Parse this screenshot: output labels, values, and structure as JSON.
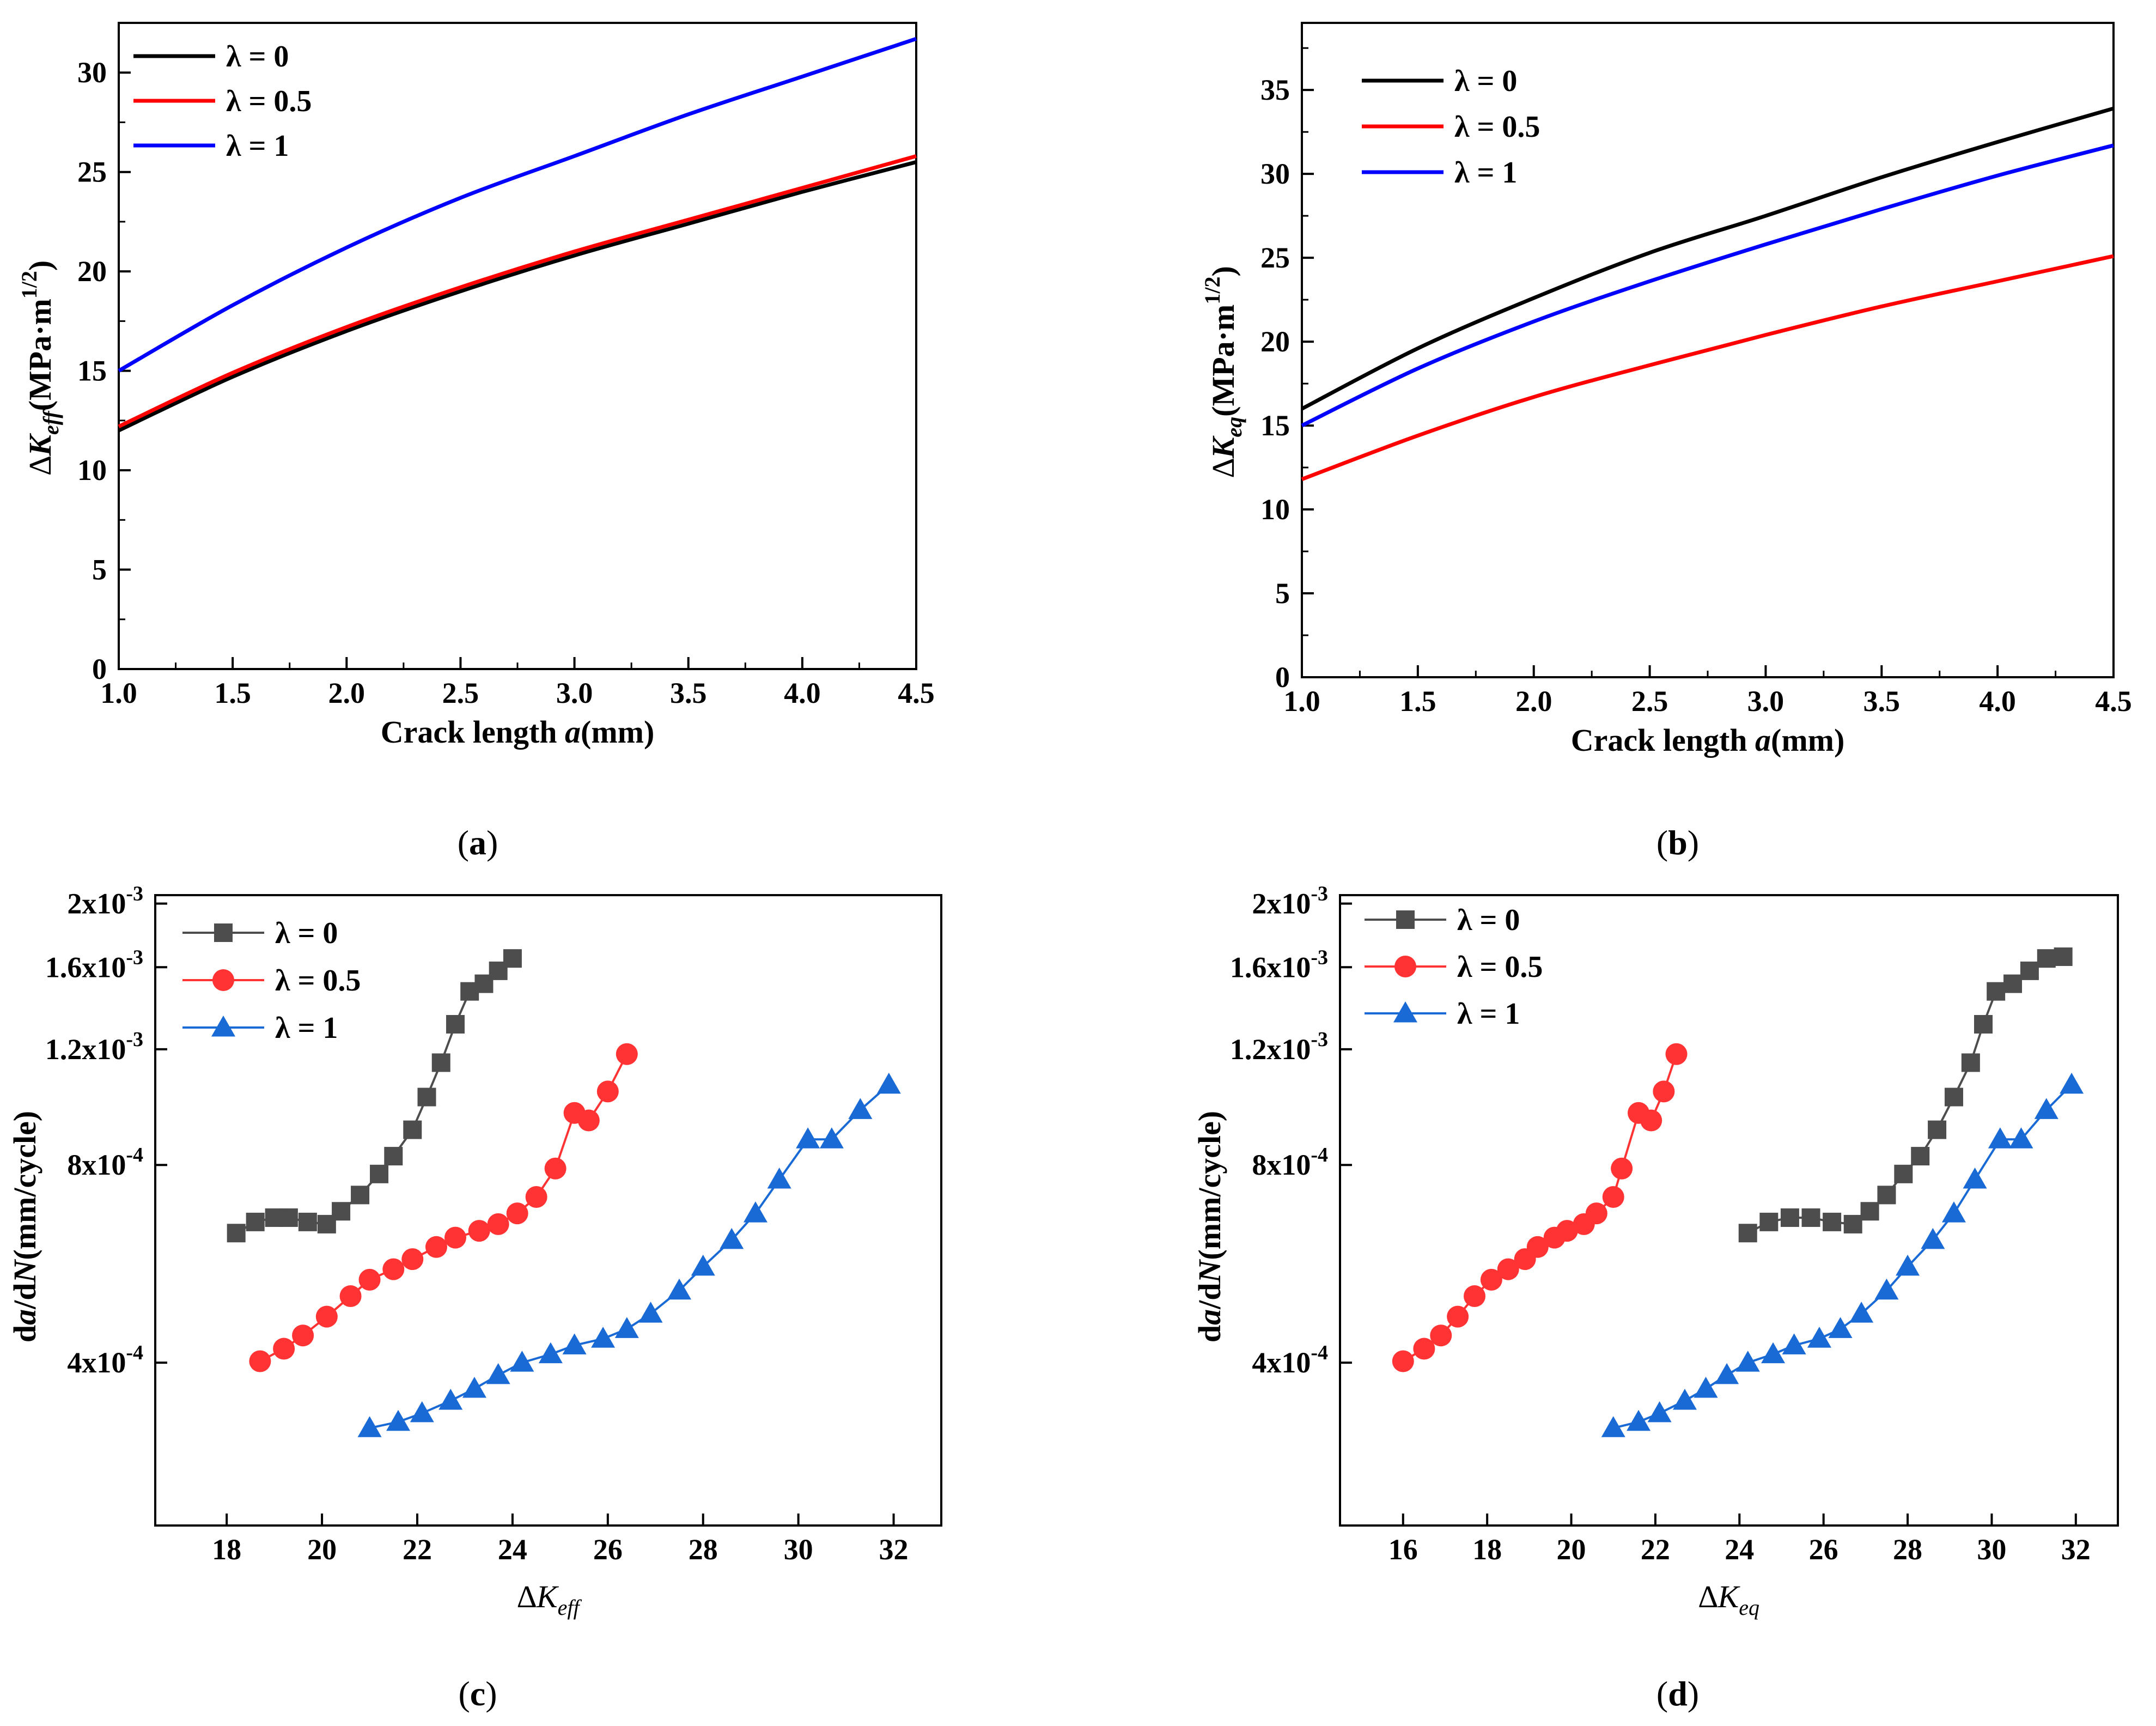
{
  "chart_data": [
    {
      "id": "a",
      "type": "line",
      "caption": "(a)",
      "xlabel": {
        "prefix": "Crack length ",
        "var": "a",
        "unit": "(mm)"
      },
      "ylabel": {
        "delta": "∆",
        "K": "K",
        "sub": "eff",
        "unit": "(MPa·m",
        "sup": "1/2",
        "close": ")"
      },
      "xlim": [
        1.0,
        4.5
      ],
      "ylim": [
        0,
        32.5
      ],
      "xticks": [
        1.0,
        1.5,
        2.0,
        2.5,
        3.0,
        3.5,
        4.0,
        4.5
      ],
      "xtick_labels": [
        "1.0",
        "1.5",
        "2.0",
        "2.5",
        "3.0",
        "3.5",
        "4.0",
        "4.5"
      ],
      "yticks": [
        0,
        5,
        10,
        15,
        20,
        25,
        30
      ],
      "ytick_labels": [
        "0",
        "5",
        "10",
        "15",
        "20",
        "25",
        "30"
      ],
      "legend_position": "top-left",
      "series": [
        {
          "name": "λ = 0",
          "color": "#000000",
          "x": [
            1.0,
            1.5,
            2.0,
            2.5,
            3.0,
            3.5,
            4.0,
            4.5
          ],
          "values": [
            12.0,
            14.7,
            17.0,
            19.0,
            20.8,
            22.4,
            24.0,
            25.5
          ]
        },
        {
          "name": "λ = 0.5",
          "color": "#ff0000",
          "x": [
            1.0,
            1.5,
            2.0,
            2.5,
            3.0,
            3.5,
            4.0,
            4.5
          ],
          "values": [
            12.2,
            14.9,
            17.2,
            19.2,
            21.0,
            22.6,
            24.2,
            25.8
          ]
        },
        {
          "name": "λ = 1",
          "color": "#0000ff",
          "x": [
            1.0,
            1.5,
            2.0,
            2.5,
            3.0,
            3.5,
            4.0,
            4.5
          ],
          "values": [
            15.0,
            18.3,
            21.2,
            23.7,
            25.8,
            27.9,
            29.8,
            31.7
          ]
        }
      ]
    },
    {
      "id": "b",
      "type": "line",
      "caption": "(b)",
      "xlabel": {
        "prefix": "Crack length ",
        "var": "a",
        "unit": "(mm)"
      },
      "ylabel": {
        "delta": "∆",
        "K": "K",
        "sub": "eq",
        "unit": "(MPa·m",
        "sup": "1/2",
        "close": ")"
      },
      "xlim": [
        1.0,
        4.5
      ],
      "ylim": [
        0,
        39
      ],
      "xticks": [
        1.0,
        1.5,
        2.0,
        2.5,
        3.0,
        3.5,
        4.0,
        4.5
      ],
      "xtick_labels": [
        "1.0",
        "1.5",
        "2.0",
        "2.5",
        "3.0",
        "3.5",
        "4.0",
        "4.5"
      ],
      "yticks": [
        0,
        5,
        10,
        15,
        20,
        25,
        30,
        35
      ],
      "ytick_labels": [
        "0",
        "5",
        "10",
        "15",
        "20",
        "25",
        "30",
        "35"
      ],
      "legend_position": "top-left",
      "series": [
        {
          "name": "λ = 0",
          "color": "#000000",
          "x": [
            1.0,
            1.5,
            2.0,
            2.5,
            3.0,
            3.5,
            4.0,
            4.5
          ],
          "values": [
            16.0,
            19.6,
            22.6,
            25.3,
            27.5,
            29.8,
            31.9,
            33.9
          ]
        },
        {
          "name": "λ = 0.5",
          "color": "#ff0000",
          "x": [
            1.0,
            1.5,
            2.0,
            2.5,
            3.0,
            3.5,
            4.0,
            4.5
          ],
          "values": [
            11.8,
            14.4,
            16.7,
            18.6,
            20.4,
            22.1,
            23.6,
            25.1
          ]
        },
        {
          "name": "λ = 1",
          "color": "#0000ff",
          "x": [
            1.0,
            1.5,
            2.0,
            2.5,
            3.0,
            3.5,
            4.0,
            4.5
          ],
          "values": [
            15.0,
            18.4,
            21.2,
            23.6,
            25.8,
            27.9,
            29.9,
            31.7
          ]
        }
      ]
    },
    {
      "id": "c",
      "type": "scatter",
      "caption": "(c)",
      "xlabel": {
        "delta": "∆",
        "K": "K",
        "sub": "eff"
      },
      "ylabel": {
        "pre": "d",
        "a": "a",
        "mid": "/d",
        "N": "N",
        "post": "(mm/cycle)"
      },
      "xlim": [
        16.5,
        33
      ],
      "ylim": [
        0.000226,
        0.00206
      ],
      "xticks": [
        18,
        20,
        22,
        24,
        26,
        28,
        30,
        32
      ],
      "xtick_labels": [
        "18",
        "20",
        "22",
        "24",
        "26",
        "28",
        "30",
        "32"
      ],
      "yticks": [
        0.0004,
        0.0008,
        0.0012,
        0.0016,
        0.002
      ],
      "ytick_labels": [
        {
          "m": "4x10",
          "e": "-4"
        },
        {
          "m": "8x10",
          "e": "-4"
        },
        {
          "m": "1.2x10",
          "e": "-3"
        },
        {
          "m": "1.6x10",
          "e": "-3"
        },
        {
          "m": "2x10",
          "e": "-3"
        }
      ],
      "legend_position": "top-left",
      "series": [
        {
          "name": "λ = 0",
          "color": "#4d4d4d",
          "marker": "square",
          "x": [
            18.2,
            18.6,
            19.0,
            19.3,
            19.7,
            20.1,
            20.4,
            20.8,
            21.2,
            21.5,
            21.9,
            22.2,
            22.5,
            22.8,
            23.1,
            23.4,
            23.7,
            24.0
          ],
          "values": [
            0.00063,
            0.000655,
            0.000665,
            0.000665,
            0.000655,
            0.00065,
            0.00068,
            0.00072,
            0.000775,
            0.000825,
            0.000905,
            0.001015,
            0.001145,
            0.00131,
            0.00147,
            0.00151,
            0.00158,
            0.00165
          ]
        },
        {
          "name": "λ = 0.5",
          "color": "#ff3333",
          "marker": "circle",
          "x": [
            18.7,
            19.2,
            19.6,
            20.1,
            20.6,
            21.0,
            21.5,
            21.9,
            22.4,
            22.8,
            23.3,
            23.7,
            24.1,
            24.5,
            24.9,
            25.3,
            25.6,
            26.0,
            26.4
          ],
          "values": [
            0.000402,
            0.00042,
            0.00044,
            0.00047,
            0.000505,
            0.000535,
            0.000555,
            0.000575,
            0.0006,
            0.00062,
            0.000635,
            0.00065,
            0.000675,
            0.000715,
            0.00079,
            0.00096,
            0.000935,
            0.001035,
            0.00118
          ]
        },
        {
          "name": "λ = 1",
          "color": "#1a6ad6",
          "marker": "triangle",
          "x": [
            21.0,
            21.6,
            22.1,
            22.7,
            23.2,
            23.7,
            24.2,
            24.8,
            25.3,
            25.9,
            26.4,
            26.9,
            27.5,
            28.0,
            28.6,
            29.1,
            29.6,
            30.2,
            30.7,
            31.3,
            31.9
          ],
          "values": [
            0.000318,
            0.000325,
            0.000335,
            0.00035,
            0.000365,
            0.000383,
            0.0004,
            0.000412,
            0.000425,
            0.000435,
            0.00045,
            0.000475,
            0.000515,
            0.00056,
            0.000615,
            0.000675,
            0.00076,
            0.000875,
            0.000875,
            0.00097,
            0.00106
          ]
        }
      ]
    },
    {
      "id": "d",
      "type": "scatter",
      "caption": "(d)",
      "xlabel": {
        "delta": "∆",
        "K": "K",
        "sub": "eq"
      },
      "ylabel": {
        "pre": "d",
        "a": "a",
        "mid": "/d",
        "N": "N",
        "post": "(mm/cycle)"
      },
      "xlim": [
        14.5,
        33
      ],
      "ylim": [
        0.000226,
        0.00206
      ],
      "xticks": [
        16,
        18,
        20,
        22,
        24,
        26,
        28,
        30,
        32
      ],
      "xtick_labels": [
        "16",
        "18",
        "20",
        "22",
        "24",
        "26",
        "28",
        "30",
        "32"
      ],
      "yticks": [
        0.0004,
        0.0008,
        0.0012,
        0.0016,
        0.002
      ],
      "ytick_labels": [
        {
          "m": "4x10",
          "e": "-4"
        },
        {
          "m": "8x10",
          "e": "-4"
        },
        {
          "m": "1.2x10",
          "e": "-3"
        },
        {
          "m": "1.6x10",
          "e": "-3"
        },
        {
          "m": "2x10",
          "e": "-3"
        }
      ],
      "legend_position": "top-left",
      "series": [
        {
          "name": "λ = 0",
          "color": "#4d4d4d",
          "marker": "square",
          "x": [
            24.2,
            24.7,
            25.2,
            25.7,
            26.2,
            26.7,
            27.1,
            27.5,
            27.9,
            28.3,
            28.7,
            29.1,
            29.5,
            29.8,
            30.1,
            30.5,
            30.9,
            31.3,
            31.7
          ],
          "values": [
            0.00063,
            0.000655,
            0.000665,
            0.000665,
            0.000655,
            0.00065,
            0.00068,
            0.00072,
            0.000775,
            0.000825,
            0.000905,
            0.001015,
            0.001145,
            0.00131,
            0.00147,
            0.00151,
            0.00158,
            0.00165,
            0.00166
          ]
        },
        {
          "name": "λ = 0.5",
          "color": "#ff3333",
          "marker": "circle",
          "x": [
            16.0,
            16.5,
            16.9,
            17.3,
            17.7,
            18.1,
            18.5,
            18.9,
            19.2,
            19.6,
            19.9,
            20.3,
            20.6,
            21.0,
            21.2,
            21.6,
            21.9,
            22.2,
            22.5
          ],
          "values": [
            0.000402,
            0.00042,
            0.00044,
            0.00047,
            0.000505,
            0.000535,
            0.000555,
            0.000575,
            0.0006,
            0.00062,
            0.000635,
            0.00065,
            0.000675,
            0.000715,
            0.00079,
            0.00096,
            0.000935,
            0.001035,
            0.00118
          ]
        },
        {
          "name": "λ = 1",
          "color": "#1a6ad6",
          "marker": "triangle",
          "x": [
            21.0,
            21.6,
            22.1,
            22.7,
            23.2,
            23.7,
            24.2,
            24.8,
            25.3,
            25.9,
            26.4,
            26.9,
            27.5,
            28.0,
            28.6,
            29.1,
            29.6,
            30.2,
            30.7,
            31.3,
            31.9
          ],
          "values": [
            0.000318,
            0.000325,
            0.000335,
            0.00035,
            0.000365,
            0.000383,
            0.0004,
            0.000412,
            0.000425,
            0.000435,
            0.00045,
            0.000475,
            0.000515,
            0.00056,
            0.000615,
            0.000675,
            0.00076,
            0.000875,
            0.000875,
            0.00097,
            0.00106
          ]
        }
      ]
    }
  ]
}
